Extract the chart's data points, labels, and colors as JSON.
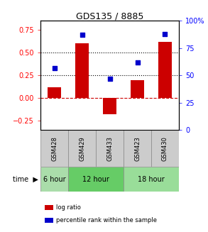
{
  "title": "GDS135 / 8885",
  "samples": [
    "GSM428",
    "GSM429",
    "GSM433",
    "GSM423",
    "GSM430"
  ],
  "log_ratios": [
    0.12,
    0.6,
    -0.18,
    0.2,
    0.62
  ],
  "percentile_ranks": [
    57,
    87,
    47,
    62,
    88
  ],
  "ylim_left": [
    -0.35,
    0.85
  ],
  "ylim_right": [
    0,
    100
  ],
  "yticks_left": [
    -0.25,
    0.0,
    0.25,
    0.5,
    0.75
  ],
  "yticks_right": [
    0,
    25,
    50,
    75,
    100
  ],
  "ytick_right_labels": [
    "0",
    "25",
    "50",
    "75",
    "100%"
  ],
  "hlines": [
    0.25,
    0.5
  ],
  "bar_color": "#cc0000",
  "dot_color": "#0000cc",
  "zero_line_color": "#cc0000",
  "bar_width": 0.5,
  "time_groups_positions": [
    {
      "label": "6 hour",
      "start": 0,
      "end": 0,
      "color": "#aaddaa"
    },
    {
      "label": "12 hour",
      "start": 1,
      "end": 2,
      "color": "#66cc66"
    },
    {
      "label": "18 hour",
      "start": 3,
      "end": 4,
      "color": "#99dd99"
    }
  ],
  "legend_items": [
    {
      "color": "#cc0000",
      "label": "log ratio"
    },
    {
      "color": "#0000cc",
      "label": "percentile rank within the sample"
    }
  ]
}
